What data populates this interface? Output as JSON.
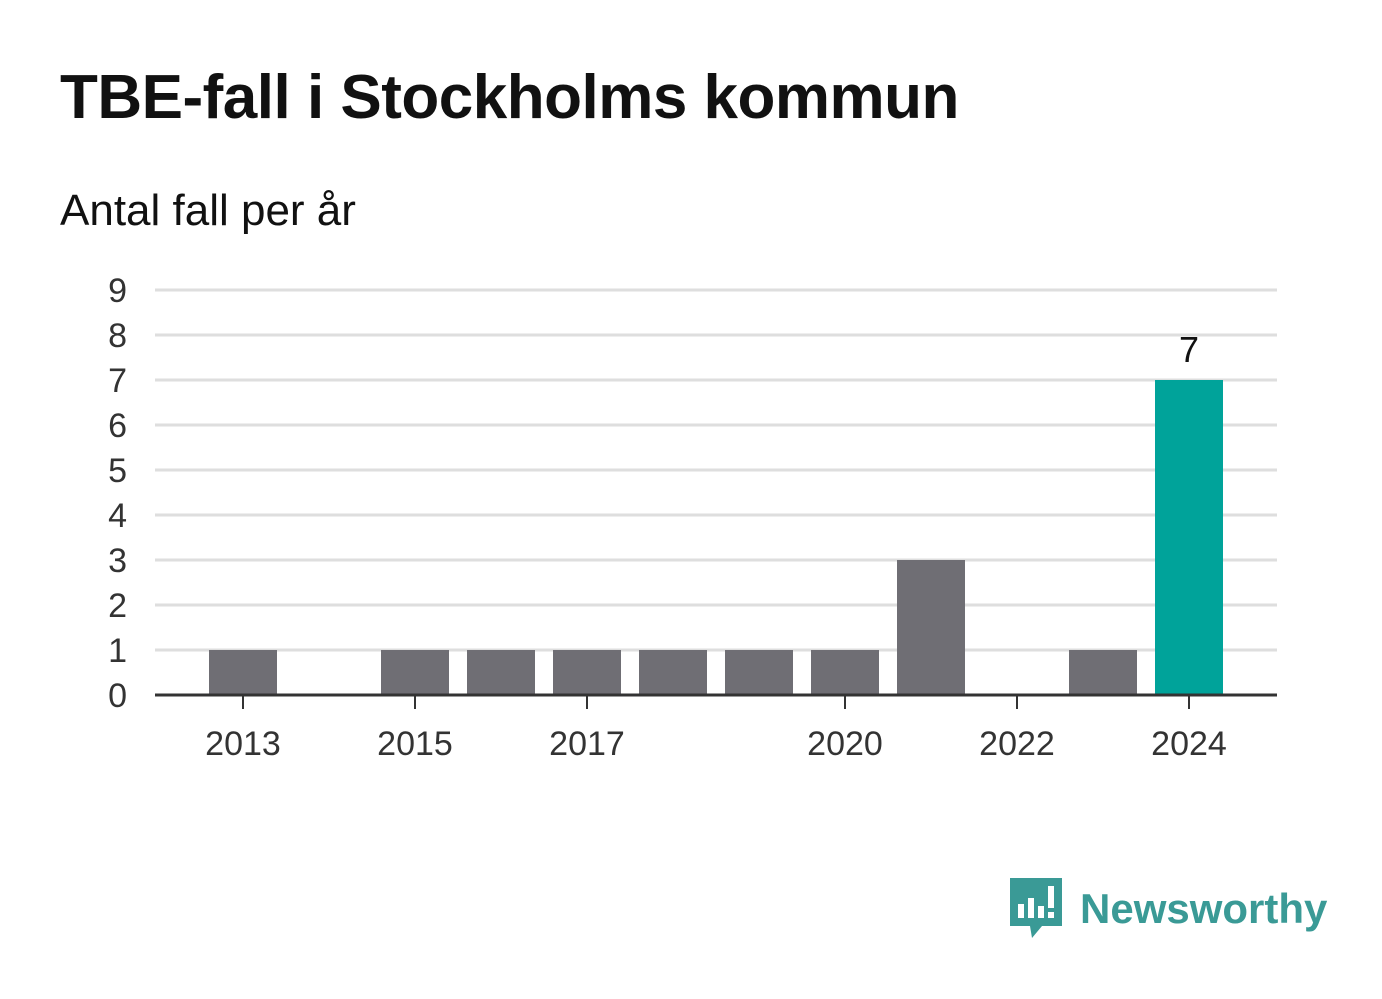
{
  "title": "TBE-fall i Stockholms kommun",
  "subtitle": "Antal fall per år",
  "brand": {
    "name": "Newsworthy",
    "color": "#3a9a96",
    "icon": "bar-chart-speech-bubble-icon"
  },
  "chart_data": {
    "type": "bar",
    "categories": [
      "2013",
      "2014",
      "2015",
      "2016",
      "2017",
      "2018",
      "2019",
      "2020",
      "2021",
      "2022",
      "2023",
      "2024"
    ],
    "x_tick_labels": [
      "2013",
      "2015",
      "2017",
      "2020",
      "2022",
      "2024"
    ],
    "values": [
      1,
      0,
      1,
      1,
      1,
      1,
      1,
      1,
      3,
      0,
      1,
      7
    ],
    "ylim": [
      0,
      9
    ],
    "y_ticks": [
      0,
      1,
      2,
      3,
      4,
      5,
      6,
      7,
      8,
      9
    ],
    "grid": true,
    "colors": {
      "default": "#6f6e74",
      "highlight": "#00a39a",
      "grid": "#dedede",
      "axis": "#333333"
    },
    "highlight_category": "2024",
    "data_labels": [
      {
        "category": "2024",
        "text": "7"
      }
    ]
  }
}
